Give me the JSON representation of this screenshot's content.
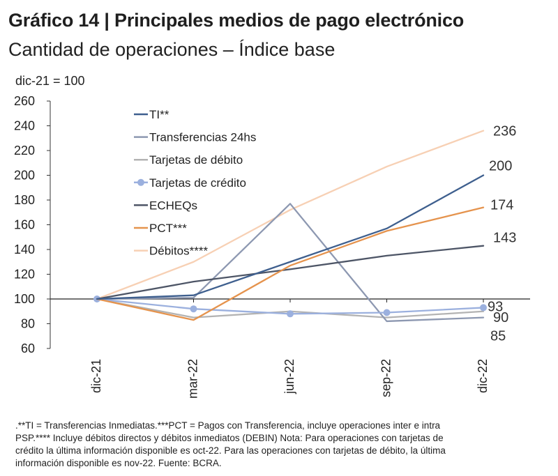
{
  "header": {
    "title": "Gráfico 14 | Principales medios de pago electrónico",
    "subtitle": "Cantidad de operaciones – Índice base",
    "unit_label": "dic-21 = 100"
  },
  "chart_data": {
    "type": "line",
    "categories": [
      "dic-21",
      "mar-22",
      "jun-22",
      "sep-22",
      "dic-22"
    ],
    "ylim": [
      60,
      260
    ],
    "yticks": [
      60,
      80,
      100,
      120,
      140,
      160,
      180,
      200,
      220,
      240,
      260
    ],
    "baseline": 100,
    "legend_position": "top-left",
    "series": [
      {
        "name": "TI**",
        "color": "#3E5F8E",
        "marker": false,
        "values": [
          100,
          103,
          130,
          157,
          200
        ],
        "end_label": "200"
      },
      {
        "name": "Transferencias 24hs",
        "color": "#8D98B1",
        "marker": false,
        "values": [
          100,
          101,
          177,
          82,
          85
        ],
        "end_label": "85"
      },
      {
        "name": "Tarjetas de débito",
        "color": "#B3B3B3",
        "marker": false,
        "values": [
          100,
          85,
          90,
          85,
          90
        ],
        "end_label": "90"
      },
      {
        "name": "Tarjetas de crédito",
        "color": "#9BB0DE",
        "marker": true,
        "values": [
          100,
          92,
          88,
          89,
          93
        ],
        "end_label": "93"
      },
      {
        "name": "ECHEQs",
        "color": "#4D5566",
        "marker": false,
        "values": [
          100,
          114,
          124,
          135,
          143
        ],
        "end_label": "143"
      },
      {
        "name": "PCT***",
        "color": "#E5934D",
        "marker": false,
        "values": [
          100,
          83,
          127,
          155,
          174
        ],
        "end_label": "174"
      },
      {
        "name": "Débitos****",
        "color": "#F7D0B4",
        "marker": false,
        "values": [
          100,
          130,
          172,
          207,
          236
        ],
        "end_label": "236"
      }
    ]
  },
  "footnote": [
    ".**TI = Transferencias Inmediatas.***PCT = Pagos con Transferencia, incluye operaciones inter e intra",
    "PSP.**** Incluye débitos directos y débitos inmediatos (DEBIN) Nota: Para operaciones con tarjetas de",
    "crédito la última información disponible es oct-22. Para las operaciones con tarjetas de débito, la última",
    "información disponible es nov-22. Fuente: BCRA."
  ]
}
